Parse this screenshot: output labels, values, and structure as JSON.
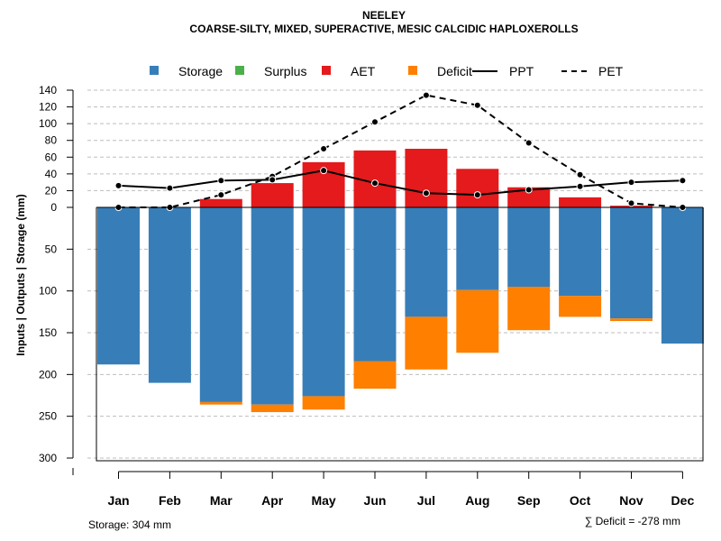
{
  "chart_data": {
    "type": "bar",
    "title": "NEELEY",
    "subtitle": "COARSE-SILTY, MIXED, SUPERACTIVE, MESIC CALCIDIC HAPLOXEROLLS",
    "ylabel": "Inputs | Outputs | Storage    (mm)",
    "categories": [
      "Jan",
      "Feb",
      "Mar",
      "Apr",
      "May",
      "Jun",
      "Jul",
      "Aug",
      "Sep",
      "Oct",
      "Nov",
      "Dec"
    ],
    "upper_ticks": [
      "140",
      "120",
      "100",
      "80",
      "60",
      "40",
      "20",
      "0"
    ],
    "lower_ticks": [
      "50",
      "100",
      "150",
      "200",
      "250",
      "300"
    ],
    "ylim_upper": [
      0,
      140
    ],
    "ylim_lower": [
      0,
      300
    ],
    "legend": [
      {
        "label": "Storage",
        "kind": "box",
        "color": "#377EB8"
      },
      {
        "label": "Surplus",
        "kind": "box",
        "color": "#4DAF4A"
      },
      {
        "label": "AET",
        "kind": "box",
        "color": "#E41A1C"
      },
      {
        "label": "Deficit",
        "kind": "box",
        "color": "#FF7F00"
      },
      {
        "label": "PPT",
        "kind": "solid",
        "color": "#000000"
      },
      {
        "label": "PET",
        "kind": "dashed",
        "color": "#000000"
      }
    ],
    "series": [
      {
        "name": "AET",
        "color": "#E41A1C",
        "values": [
          0,
          0,
          10,
          29,
          54,
          68,
          70,
          46,
          24,
          12,
          2,
          0
        ]
      },
      {
        "name": "Storage",
        "color": "#377EB8",
        "values": [
          188,
          210,
          233,
          236,
          226,
          184,
          131,
          99,
          95,
          106,
          133,
          163
        ]
      },
      {
        "name": "Deficit",
        "color": "#FF7F00",
        "values": [
          0,
          0,
          3,
          9,
          16,
          33,
          63,
          75,
          52,
          25,
          3,
          0
        ]
      },
      {
        "name": "PPT",
        "color": "#000000",
        "values": [
          26,
          23,
          32,
          33,
          44,
          29,
          17,
          15,
          21,
          25,
          30,
          32
        ]
      },
      {
        "name": "PET",
        "color": "#000000",
        "values": [
          0,
          0,
          15,
          37,
          70,
          102,
          134,
          122,
          77,
          39,
          5,
          0
        ]
      }
    ],
    "storage_total_label": "Storage: 304 mm",
    "deficit_total_label": "∑ Deficit = -278 mm"
  }
}
